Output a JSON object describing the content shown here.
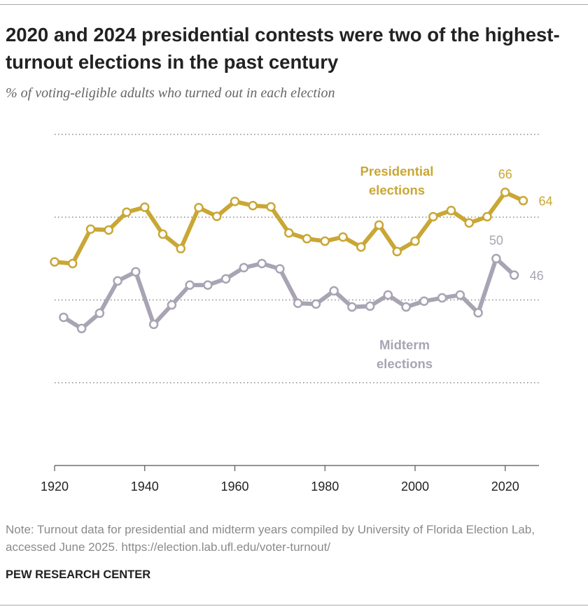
{
  "title": "2020 and 2024 presidential contests were two of the highest-turnout elections in the past century",
  "subtitle": "% of voting-eligible adults who turned out in each election",
  "note": "Note: Turnout data for presidential and midterm years compiled by University of Florida Election Lab, accessed June 2025. https://election.lab.ufl.edu/voter-turnout/",
  "source": "PEW RESEARCH CENTER",
  "chart_data": {
    "type": "line",
    "xlim": [
      1920,
      2027.5
    ],
    "xticks": [
      1920,
      1940,
      1960,
      1980,
      2000,
      2020
    ],
    "ylim": [
      0,
      80
    ],
    "yticks": [
      0,
      20,
      40,
      60,
      80
    ],
    "grid": true,
    "series": [
      {
        "name": "Presidential elections",
        "color": "#c9a735",
        "x": [
          1920,
          1924,
          1928,
          1932,
          1936,
          1940,
          1944,
          1948,
          1952,
          1956,
          1960,
          1964,
          1968,
          1972,
          1976,
          1980,
          1984,
          1988,
          1992,
          1996,
          2000,
          2004,
          2008,
          2012,
          2016,
          2020,
          2024
        ],
        "values": [
          49.2,
          48.8,
          57.1,
          56.9,
          61.2,
          62.4,
          55.9,
          52.4,
          62.3,
          60.2,
          63.8,
          62.8,
          62.5,
          56.2,
          54.8,
          54.2,
          55.2,
          52.8,
          58.1,
          51.7,
          54.2,
          60.1,
          61.6,
          58.6,
          60.1,
          66,
          64
        ]
      },
      {
        "name": "Midterm elections",
        "color": "#a9a4b3",
        "x": [
          1922,
          1926,
          1930,
          1934,
          1938,
          1942,
          1946,
          1950,
          1954,
          1958,
          1962,
          1966,
          1970,
          1974,
          1978,
          1982,
          1986,
          1990,
          1994,
          1998,
          2002,
          2006,
          2010,
          2014,
          2018,
          2022
        ],
        "values": [
          35.8,
          33.1,
          36.8,
          44.6,
          46.8,
          34.1,
          38.8,
          43.6,
          43.6,
          45.1,
          47.8,
          48.8,
          47.5,
          39.2,
          39.0,
          42.2,
          38.3,
          38.5,
          41.2,
          38.3,
          39.7,
          40.5,
          41.2,
          36.9,
          50,
          46
        ]
      }
    ]
  }
}
